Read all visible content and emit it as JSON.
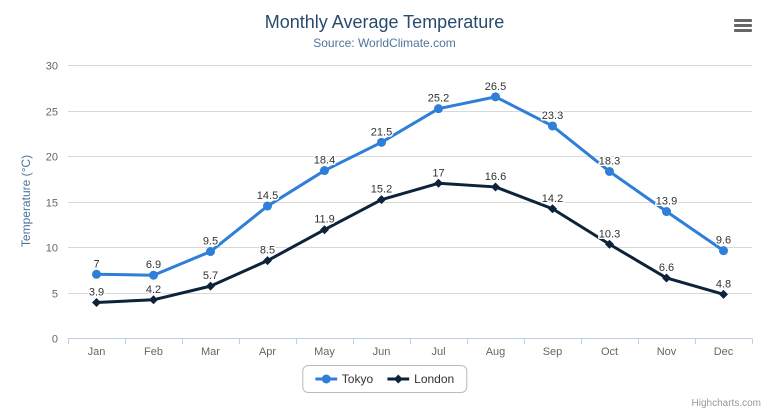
{
  "chart": {
    "title": "Monthly Average Temperature",
    "subtitle": "Source: WorldClimate.com",
    "credits": "Highcharts.com",
    "menu_icon": "hamburger-menu"
  },
  "chart_data": {
    "type": "line",
    "title": "Monthly Average Temperature",
    "subtitle": "Source: WorldClimate.com",
    "xlabel": "",
    "ylabel": "Temperature (°C)",
    "categories": [
      "Jan",
      "Feb",
      "Mar",
      "Apr",
      "May",
      "Jun",
      "Jul",
      "Aug",
      "Sep",
      "Oct",
      "Nov",
      "Dec"
    ],
    "series": [
      {
        "name": "Tokyo",
        "color": "#2f7ed8",
        "marker": "circle",
        "values": [
          7,
          6.9,
          9.5,
          14.5,
          18.4,
          21.5,
          25.2,
          26.5,
          23.3,
          18.3,
          13.9,
          9.6
        ]
      },
      {
        "name": "London",
        "color": "#0d233a",
        "marker": "diamond",
        "values": [
          3.9,
          4.2,
          5.7,
          8.5,
          11.9,
          15.2,
          17,
          16.6,
          14.2,
          10.3,
          6.6,
          4.8
        ]
      }
    ],
    "ylim": [
      0,
      30
    ],
    "y_ticks": [
      0,
      5,
      10,
      15,
      20,
      25,
      30
    ],
    "grid": true,
    "legend_position": "bottom",
    "style": {
      "grid_color": "#d8d8d8",
      "axis_line_color": "#c0d0e0",
      "tick_label_color": "#666666",
      "data_label_color": "#333333",
      "title_color": "#274b6d",
      "subtitle_color": "#4d759e"
    }
  }
}
